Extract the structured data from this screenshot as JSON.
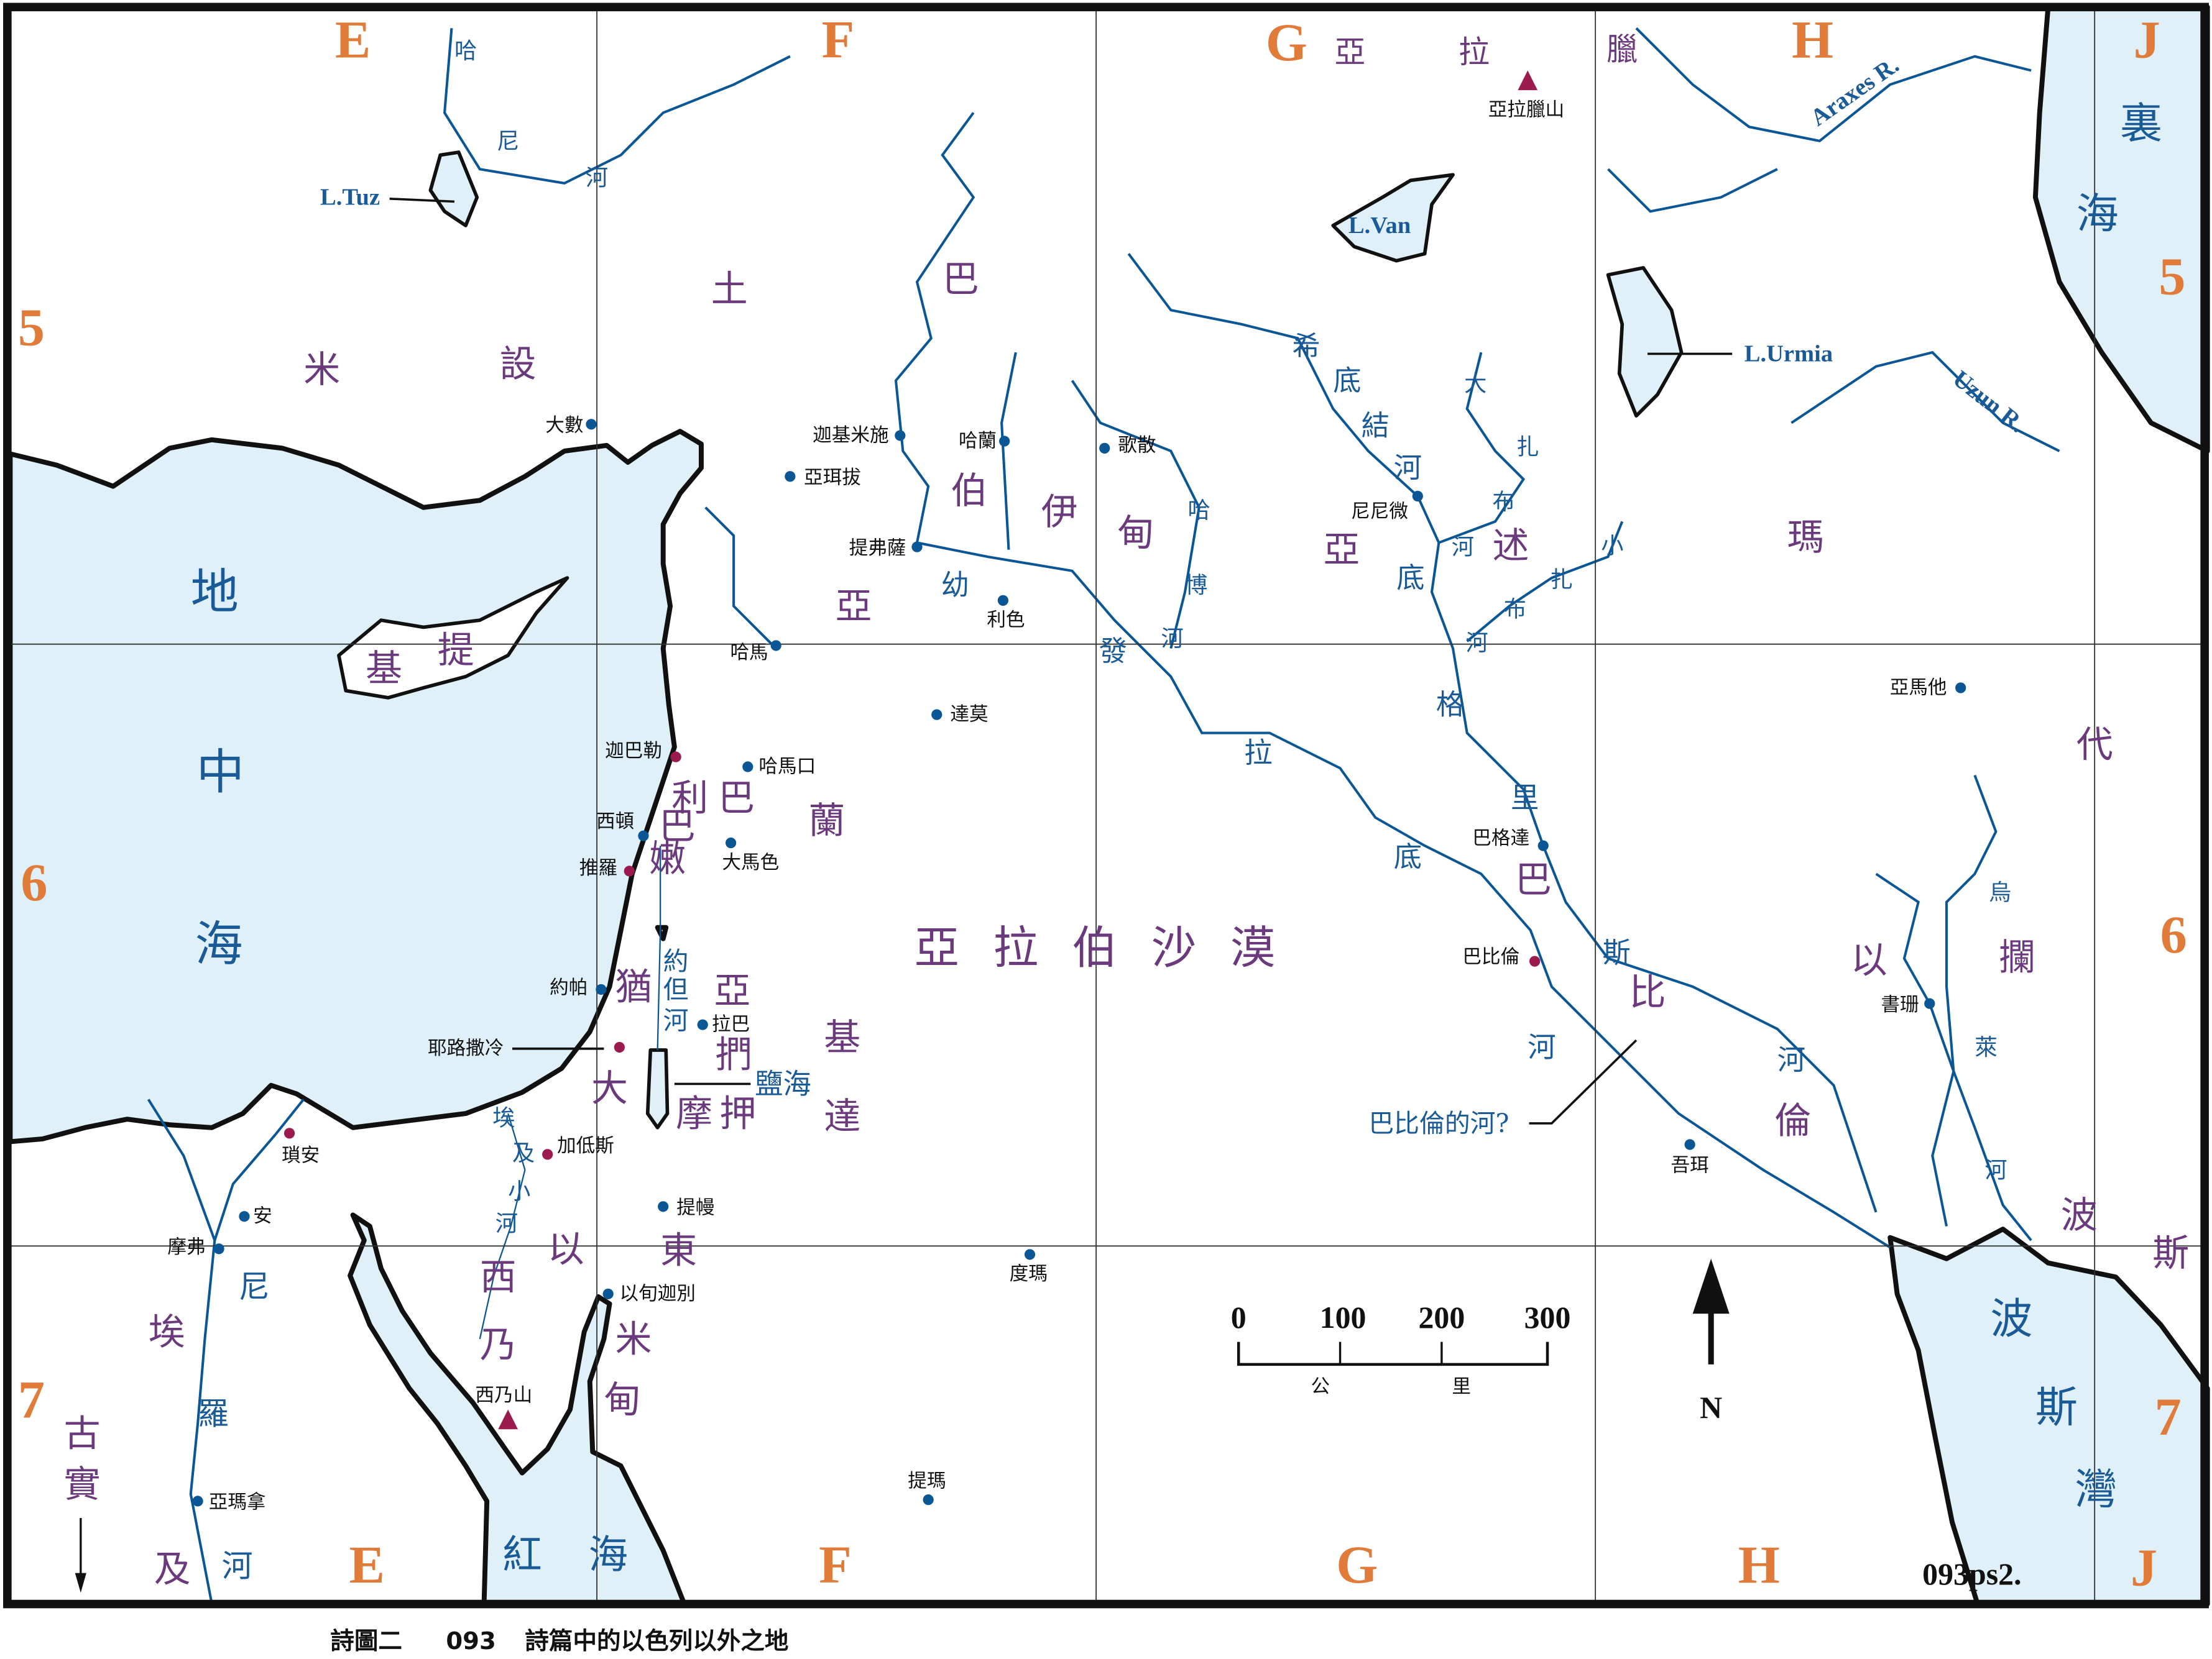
{
  "map": {
    "code": "093ps2.",
    "caption": {
      "prefix": "詩圖二",
      "number": "093",
      "title": "詩篇中的以色列以外之地"
    },
    "colors": {
      "sea": "#dff0f8",
      "river": "#0b5694",
      "region_text": "#6b3a7d",
      "water_text": "#1a5a96",
      "grid_text": "#e07b39",
      "city_dot": "#0b5694",
      "capital_dot": "#9b1b4f",
      "mountain": "#9b1b4f"
    }
  },
  "grid": {
    "columns_top": [
      "E",
      "F",
      "G",
      "H",
      "J"
    ],
    "columns_bottom": [
      "E",
      "F",
      "G",
      "H",
      "J"
    ],
    "rows_left": [
      "5",
      "6",
      "7"
    ],
    "rows_right": [
      "5",
      "6",
      "7"
    ]
  },
  "regions": [
    "米",
    "設",
    "土",
    "巴",
    "亞",
    "拉",
    "臘",
    "伯",
    "伊",
    "甸",
    "亞",
    "亞",
    "述",
    "瑪",
    "基",
    "提",
    "利",
    "巴",
    "巴",
    "嫩",
    "蘭",
    "猶",
    "大",
    "亞",
    "捫",
    "摩",
    "押",
    "基",
    "達",
    "亞",
    "拉",
    "伯",
    "沙",
    "漠",
    "以",
    "東",
    "西",
    "乃",
    "米",
    "甸",
    "埃",
    "及",
    "古",
    "實",
    "巴",
    "比",
    "倫",
    "以",
    "攔",
    "代",
    "波",
    "斯"
  ],
  "waters": [
    "地",
    "中",
    "海",
    "裏",
    "海",
    "波",
    "斯",
    "灣",
    "紅",
    "海",
    "鹽海",
    "約",
    "但",
    "河",
    "哈",
    "尼",
    "河",
    "幼",
    "發",
    "拉",
    "底",
    "希",
    "底",
    "結",
    "河",
    "底",
    "格",
    "里",
    "斯",
    "河",
    "大",
    "扎",
    "布",
    "河",
    "小",
    "扎",
    "布",
    "河",
    "哈",
    "博",
    "河",
    "埃",
    "及",
    "小",
    "河",
    "尼",
    "羅",
    "河",
    "烏",
    "萊",
    "河",
    "河",
    "巴比倫的河?"
  ],
  "lakes_rivers_latin": [
    "L.Tuz",
    "L.Van",
    "L.Urmia",
    "Araxes R.",
    "Uzun R."
  ],
  "cities": [
    {
      "name": "大數",
      "marker": "city"
    },
    {
      "name": "迦基米施",
      "marker": "city"
    },
    {
      "name": "哈蘭",
      "marker": "city"
    },
    {
      "name": "歌散",
      "marker": "city"
    },
    {
      "name": "亞珥拔",
      "marker": "city"
    },
    {
      "name": "提弗薩",
      "marker": "city"
    },
    {
      "name": "利色",
      "marker": "city"
    },
    {
      "name": "尼尼微",
      "marker": "city"
    },
    {
      "name": "哈馬",
      "marker": "city"
    },
    {
      "name": "達莫",
      "marker": "city"
    },
    {
      "name": "迦巴勒",
      "marker": "capital"
    },
    {
      "name": "哈馬口",
      "marker": "city"
    },
    {
      "name": "西頓",
      "marker": "city"
    },
    {
      "name": "大馬色",
      "marker": "city"
    },
    {
      "name": "推羅",
      "marker": "capital"
    },
    {
      "name": "巴格達",
      "marker": "city"
    },
    {
      "name": "亞馬他",
      "marker": "city"
    },
    {
      "name": "巴比倫",
      "marker": "capital"
    },
    {
      "name": "約帕",
      "marker": "city"
    },
    {
      "name": "拉巴",
      "marker": "city"
    },
    {
      "name": "耶路撒冷",
      "marker": "capital"
    },
    {
      "name": "書珊",
      "marker": "city"
    },
    {
      "name": "加低斯",
      "marker": "capital"
    },
    {
      "name": "瑣安",
      "marker": "capital"
    },
    {
      "name": "吾珥",
      "marker": "city"
    },
    {
      "name": "提幔",
      "marker": "city"
    },
    {
      "name": "安",
      "marker": "city"
    },
    {
      "name": "摩弗",
      "marker": "city"
    },
    {
      "name": "度瑪",
      "marker": "city"
    },
    {
      "name": "以旬迦別",
      "marker": "city"
    },
    {
      "name": "西乃山",
      "marker": "mountain"
    },
    {
      "name": "亞拉臘山",
      "marker": "mountain"
    },
    {
      "name": "提瑪",
      "marker": "city"
    },
    {
      "name": "亞瑪拿",
      "marker": "city"
    }
  ],
  "scale_bar": {
    "ticks": [
      "0",
      "100",
      "200",
      "300"
    ],
    "unit_chars": [
      "公",
      "里"
    ]
  },
  "north_label": "N"
}
